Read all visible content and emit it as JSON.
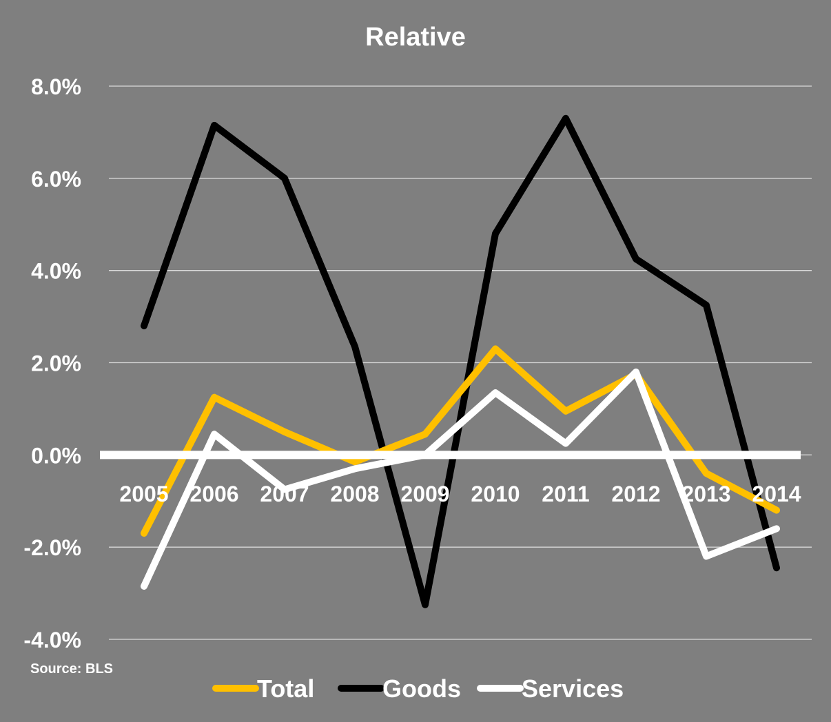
{
  "chart_data": {
    "type": "line",
    "title": "Relative",
    "xlabel": "",
    "ylabel": "",
    "source": "Source: BLS",
    "categories": [
      "2005",
      "2006",
      "2007",
      "2008",
      "2009",
      "2010",
      "2011",
      "2012",
      "2013",
      "2014"
    ],
    "ylim": [
      -4.0,
      8.0
    ],
    "yticks": [
      -4.0,
      -2.0,
      0.0,
      2.0,
      4.0,
      6.0,
      8.0
    ],
    "ytick_labels": [
      "-4.0%",
      "-2.0%",
      "0.0%",
      "2.0%",
      "4.0%",
      "6.0%",
      "8.0%"
    ],
    "grid": true,
    "legend_position": "bottom",
    "series": [
      {
        "name": "Total",
        "color": "#ffc000",
        "values": [
          -1.7,
          1.25,
          0.5,
          -0.15,
          0.45,
          2.3,
          0.95,
          1.75,
          -0.4,
          -1.2
        ]
      },
      {
        "name": "Goods",
        "color": "#000000",
        "values": [
          2.8,
          7.15,
          6.0,
          2.35,
          -3.25,
          4.8,
          7.3,
          4.25,
          3.25,
          -2.45
        ]
      },
      {
        "name": "Services",
        "color": "#ffffff",
        "values": [
          -2.85,
          0.45,
          -0.75,
          -0.3,
          0.0,
          1.35,
          0.25,
          1.8,
          -2.2,
          -1.6
        ]
      }
    ]
  }
}
